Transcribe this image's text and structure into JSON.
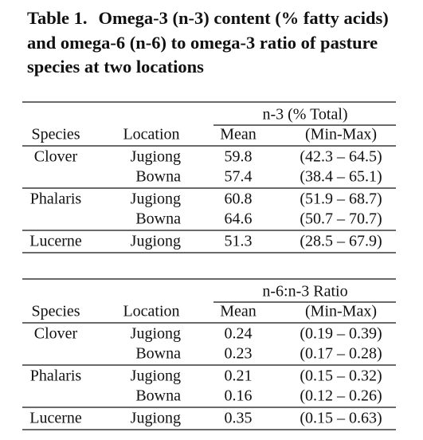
{
  "title": {
    "label": "Table 1.",
    "text": "Omega-3 (n-3) content (% fatty acids) and omega-6 (n-6) to omega-3 ratio of pasture species at two locations"
  },
  "tables": [
    {
      "group_header": "n-3 (% Total)",
      "headers": [
        "Species",
        "Location",
        "Mean",
        "(Min-Max)"
      ],
      "groups": [
        {
          "species": "Clover",
          "rows": [
            {
              "location": "Jugiong",
              "mean": 59.8,
              "range": "(42.3 – 64.5)"
            },
            {
              "location": "Bowna",
              "mean": 57.4,
              "range": "(38.4 – 65.1)"
            }
          ]
        },
        {
          "species": "Phalaris",
          "rows": [
            {
              "location": "Jugiong",
              "mean": 60.8,
              "range": "(51.9 – 68.7)"
            },
            {
              "location": "Bowna",
              "mean": 64.6,
              "range": "(50.7 – 70.7)"
            }
          ]
        },
        {
          "species": "Lucerne",
          "rows": [
            {
              "location": "Jugiong",
              "mean": 51.3,
              "range": "(28.5 – 67.9)"
            }
          ]
        }
      ]
    },
    {
      "group_header": "n-6:n-3 Ratio",
      "headers": [
        "Species",
        "Location",
        "Mean",
        "(Min-Max)"
      ],
      "groups": [
        {
          "species": "Clover",
          "rows": [
            {
              "location": "Jugiong",
              "mean": 0.24,
              "range": "(0.19 – 0.39)"
            },
            {
              "location": "Bowna",
              "mean": 0.23,
              "range": "(0.17 – 0.28)"
            }
          ]
        },
        {
          "species": "Phalaris",
          "rows": [
            {
              "location": "Jugiong",
              "mean": 0.21,
              "range": "(0.15 – 0.32)"
            },
            {
              "location": "Bowna",
              "mean": 0.16,
              "range": "(0.12 – 0.26)"
            }
          ]
        },
        {
          "species": "Lucerne",
          "rows": [
            {
              "location": "Jugiong",
              "mean": 0.35,
              "range": "(0.15 – 0.63)"
            }
          ]
        }
      ]
    }
  ]
}
